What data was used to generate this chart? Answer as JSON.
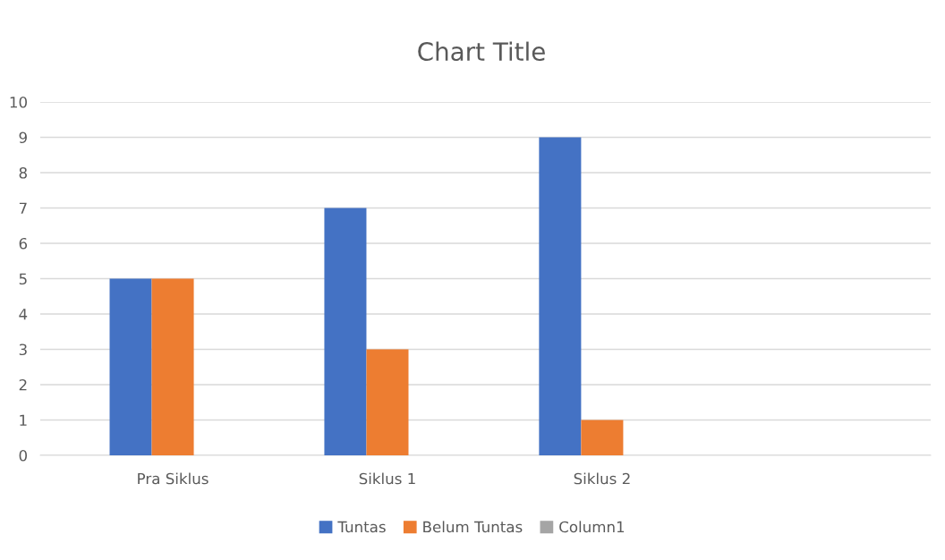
{
  "chart_data": {
    "type": "bar",
    "title": "Chart Title",
    "categories": [
      "Pra Siklus",
      "Siklus 1",
      "Siklus 2",
      null
    ],
    "series": [
      {
        "name": "Tuntas",
        "color": "#4472c4",
        "values": [
          5,
          7,
          9,
          null
        ]
      },
      {
        "name": "Belum Tuntas",
        "color": "#ed7d31",
        "values": [
          5,
          3,
          1,
          null
        ]
      },
      {
        "name": "Column1",
        "color": "#a5a5a5",
        "values": [
          null,
          null,
          null,
          null
        ]
      }
    ],
    "ylim": [
      0,
      10
    ],
    "yticks": [
      0,
      1,
      2,
      3,
      4,
      5,
      6,
      7,
      8,
      9,
      10
    ],
    "grid": "y",
    "legend": "bottom"
  }
}
